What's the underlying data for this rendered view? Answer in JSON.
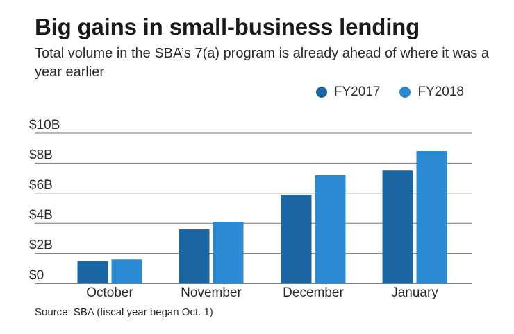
{
  "chart_data": {
    "type": "bar",
    "title": "Big gains in small-business lending",
    "subtitle": "Total volume in the SBA’s 7(a) program is already ahead of where it was a year earlier",
    "categories": [
      "October",
      "November",
      "December",
      "January"
    ],
    "series": [
      {
        "name": "FY2017",
        "color": "#1a67a3",
        "values": [
          1.5,
          3.6,
          5.9,
          7.5
        ]
      },
      {
        "name": "FY2018",
        "color": "#2a8ad4",
        "values": [
          1.6,
          4.1,
          7.2,
          8.8
        ]
      }
    ],
    "ylim": [
      0,
      10
    ],
    "yticks": [
      0,
      2,
      4,
      6,
      8,
      10
    ],
    "ytick_labels": [
      "$0",
      "$2B",
      "$4B",
      "$6B",
      "$8B",
      "$10B"
    ],
    "xlabel": "",
    "ylabel": "",
    "grid": true,
    "legend_position": "top-right",
    "source": "Source: SBA (fiscal year began Oct. 1)"
  }
}
